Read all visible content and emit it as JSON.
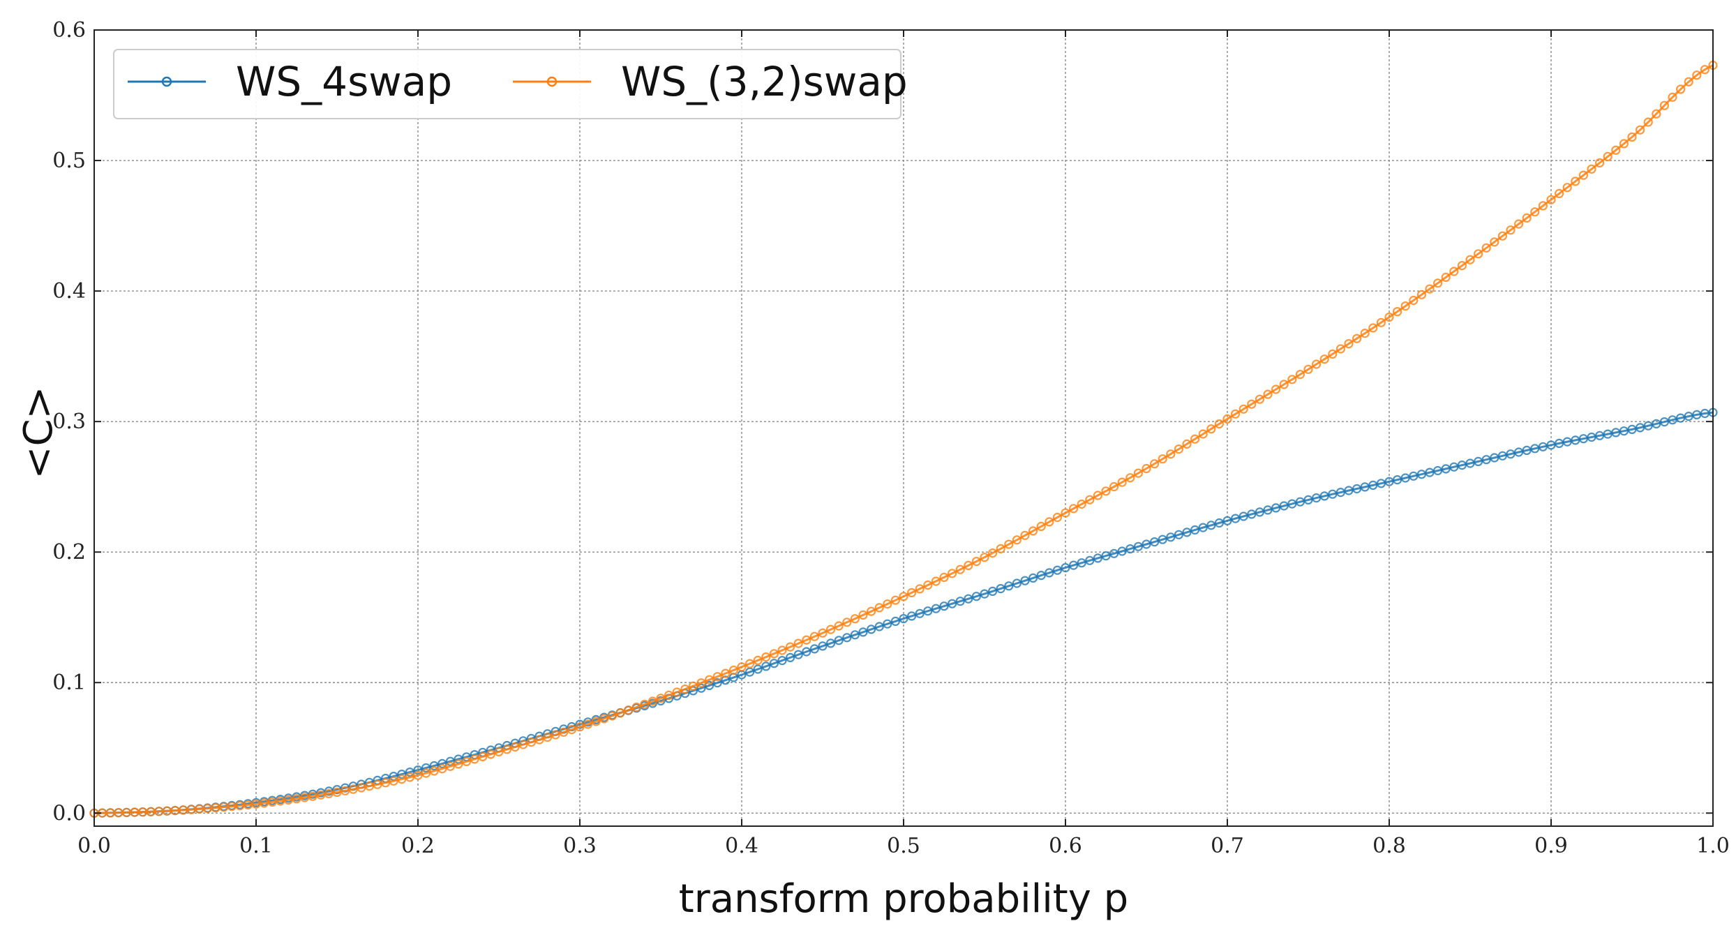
{
  "chart_data": {
    "type": "line",
    "title": "",
    "xlabel": "transform probability p",
    "ylabel": "<C>",
    "xlim": [
      0.0,
      1.0
    ],
    "ylim": [
      -0.01,
      0.6
    ],
    "xticks": [
      "0.0",
      "0.1",
      "0.2",
      "0.3",
      "0.4",
      "0.5",
      "0.6",
      "0.7",
      "0.8",
      "0.9",
      "1.0"
    ],
    "yticks": [
      "0.0",
      "0.1",
      "0.2",
      "0.3",
      "0.4",
      "0.5",
      "0.6"
    ],
    "grid": true,
    "legend": "top-left",
    "x": [
      0.0,
      0.05,
      0.1,
      0.15,
      0.2,
      0.25,
      0.3,
      0.35,
      0.4,
      0.45,
      0.5,
      0.55,
      0.6,
      0.65,
      0.7,
      0.75,
      0.8,
      0.85,
      0.9,
      0.95,
      1.0
    ],
    "series": [
      {
        "name": "WS_4swap",
        "color": "#1f77b4",
        "values": [
          0.0,
          0.002,
          0.008,
          0.018,
          0.033,
          0.05,
          0.068,
          0.086,
          0.106,
          0.128,
          0.149,
          0.168,
          0.188,
          0.206,
          0.224,
          0.24,
          0.254,
          0.268,
          0.282,
          0.294,
          0.307
        ]
      },
      {
        "name": "WS_(3,2)swap",
        "color": "#ff7f0e",
        "values": [
          0.0,
          0.002,
          0.007,
          0.016,
          0.029,
          0.047,
          0.066,
          0.088,
          0.112,
          0.138,
          0.166,
          0.196,
          0.23,
          0.264,
          0.302,
          0.34,
          0.38,
          0.424,
          0.47,
          0.518,
          0.573
        ]
      }
    ]
  }
}
